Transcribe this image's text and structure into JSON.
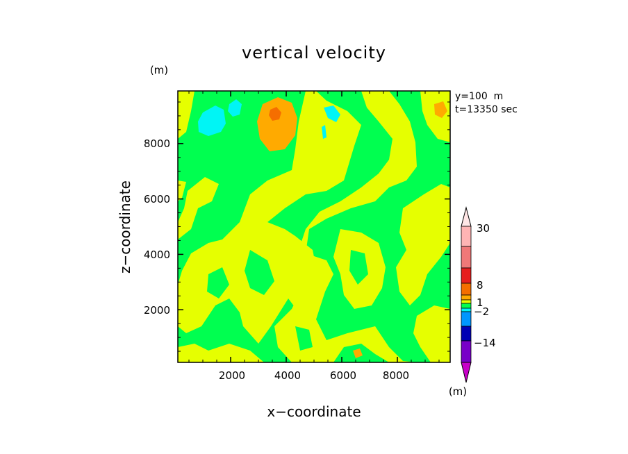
{
  "chart_data": {
    "type": "heatmap",
    "title": "vertical velocity",
    "xlabel": "x−coordinate",
    "ylabel": "z−coordinate",
    "x_unit": "(m)",
    "y_unit": "(m)",
    "xlim": [
      100,
      9900
    ],
    "ylim": [
      100,
      9900
    ],
    "x_ticks": [
      2000,
      4000,
      6000,
      8000
    ],
    "y_ticks": [
      2000,
      4000,
      6000,
      8000
    ],
    "x_tick_labels": [
      "2000",
      "4000",
      "6000",
      "8000"
    ],
    "y_tick_labels": [
      "2000",
      "4000",
      "6000",
      "8000"
    ],
    "annotations": [
      "y=100  m",
      "t=13350 sec"
    ],
    "colorbar": {
      "unit": "(m)",
      "labels": [
        "30",
        "8",
        "1",
        "−2",
        "−14"
      ],
      "colors": [
        "#ffb4b4",
        "#f07878",
        "#e61e1e",
        "#f56e00",
        "#ffaa00",
        "#e6ff00",
        "#00ff50",
        "#00f5f5",
        "#0096ff",
        "#0000b4",
        "#7800c8",
        "#c800c8"
      ]
    },
    "fill_colors": {
      "background": "#00ff50",
      "positive_weak": "#e6ff00",
      "positive_mid": "#ffaa00",
      "positive_strong": "#f56e00",
      "negative_weak": "#00f5f5"
    }
  }
}
